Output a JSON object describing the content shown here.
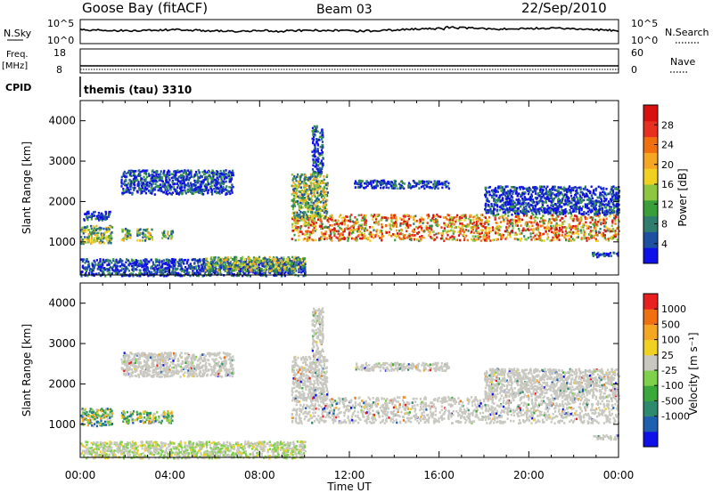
{
  "header": {
    "station": "Goose Bay (fitACF)",
    "beam": "Beam 03",
    "date": "22/Sep/2010",
    "program": "themis (tau) 3310"
  },
  "aux_panels": {
    "nsky_label": "N.Sky",
    "nsky_ticks": [
      "10^5",
      "10^0"
    ],
    "nsky_right_ticks": [
      "10^5",
      "10^0"
    ],
    "nsearch_label": "N.Search",
    "freq_label": "Freq.",
    "freq_unit": "[MHz]",
    "freq_ticks": [
      "18",
      "8"
    ],
    "nave_ticks": [
      "60",
      "0"
    ],
    "nave_label": "Nave",
    "cpid_label": "CPID"
  },
  "chart_data": [
    {
      "type": "heatmap",
      "title": "",
      "xlabel": "",
      "ylabel": "Slant Range [km]",
      "xlim": [
        0,
        24
      ],
      "ylim": [
        180,
        4500
      ],
      "y_ticks": [
        "1000",
        "2000",
        "3000",
        "4000"
      ],
      "colorbar": {
        "label": "Power [dB]",
        "range": [
          0,
          32
        ],
        "ticks": [
          "4",
          "8",
          "12",
          "16",
          "20",
          "24",
          "28"
        ],
        "colors": [
          "#1010e8",
          "#1f4fa0",
          "#2e7d6e",
          "#3a9e3a",
          "#8ec63f",
          "#f0d020",
          "#f5a623",
          "#f07010",
          "#e83020",
          "#d81010"
        ]
      },
      "regions": [
        {
          "t0": 0.0,
          "t1": 1.4,
          "r0": 980,
          "r1": 1420,
          "level": "mid"
        },
        {
          "t0": 0.1,
          "t1": 1.3,
          "r0": 1560,
          "r1": 1780,
          "level": "low"
        },
        {
          "t0": 1.8,
          "t1": 2.2,
          "r0": 1050,
          "r1": 1350,
          "level": "mid"
        },
        {
          "t0": 2.5,
          "t1": 3.2,
          "r0": 1050,
          "r1": 1350,
          "level": "mid"
        },
        {
          "t0": 3.6,
          "t1": 4.1,
          "r0": 1100,
          "r1": 1300,
          "level": "mid"
        },
        {
          "t0": 1.8,
          "t1": 6.8,
          "r0": 2200,
          "r1": 2800,
          "level": "low"
        },
        {
          "t0": 0.0,
          "t1": 10.0,
          "r0": 180,
          "r1": 600,
          "level": "low"
        },
        {
          "t0": 5.5,
          "t1": 10.0,
          "r0": 300,
          "r1": 650,
          "level": "mid"
        },
        {
          "t0": 9.4,
          "t1": 24.0,
          "r0": 1050,
          "r1": 1700,
          "level": "high"
        },
        {
          "t0": 9.4,
          "t1": 11.0,
          "r0": 1600,
          "r1": 2700,
          "level": "mid"
        },
        {
          "t0": 10.3,
          "t1": 10.8,
          "r0": 2700,
          "r1": 3900,
          "level": "low"
        },
        {
          "t0": 12.2,
          "t1": 16.4,
          "r0": 2350,
          "r1": 2550,
          "level": "low"
        },
        {
          "t0": 18.0,
          "t1": 24.0,
          "r0": 1700,
          "r1": 2400,
          "level": "low"
        },
        {
          "t0": 22.8,
          "t1": 24.0,
          "r0": 650,
          "r1": 760,
          "level": "low"
        }
      ]
    },
    {
      "type": "heatmap",
      "title": "",
      "xlabel": "Time UT",
      "ylabel": "Slant Range [km]",
      "xlim": [
        0,
        24
      ],
      "ylim": [
        180,
        4500
      ],
      "x_ticks": [
        "00:00",
        "04:00",
        "08:00",
        "12:00",
        "16:00",
        "20:00",
        "00:00"
      ],
      "y_ticks": [
        "1000",
        "2000",
        "3000",
        "4000"
      ],
      "colorbar": {
        "label": "Velocity [m s⁻¹]",
        "range": [
          -1000,
          1000
        ],
        "ticks": [
          "1000",
          "500",
          "100",
          "25",
          "-25",
          "-100",
          "-500",
          "-1000"
        ],
        "colors": [
          "#1010e8",
          "#1f5fb0",
          "#2e8a6e",
          "#3aa83a",
          "#7fd04a",
          "#c8c8c0",
          "#f0d020",
          "#f5a623",
          "#f07010",
          "#e82020"
        ]
      },
      "regions": [
        {
          "t0": 0.0,
          "t1": 1.4,
          "r0": 980,
          "r1": 1420,
          "level": "mixed"
        },
        {
          "t0": 1.8,
          "t1": 4.1,
          "r0": 1050,
          "r1": 1350,
          "level": "mixed"
        },
        {
          "t0": 1.8,
          "t1": 6.8,
          "r0": 2200,
          "r1": 2800,
          "level": "grey"
        },
        {
          "t0": 0.0,
          "t1": 10.0,
          "r0": 180,
          "r1": 600,
          "level": "greenish"
        },
        {
          "t0": 9.4,
          "t1": 24.0,
          "r0": 1050,
          "r1": 1700,
          "level": "grey"
        },
        {
          "t0": 9.4,
          "t1": 11.0,
          "r0": 1600,
          "r1": 2700,
          "level": "grey"
        },
        {
          "t0": 10.3,
          "t1": 10.8,
          "r0": 2700,
          "r1": 3900,
          "level": "grey"
        },
        {
          "t0": 12.2,
          "t1": 16.4,
          "r0": 2350,
          "r1": 2550,
          "level": "grey"
        },
        {
          "t0": 18.0,
          "t1": 24.0,
          "r0": 1700,
          "r1": 2400,
          "level": "grey"
        },
        {
          "t0": 22.8,
          "t1": 24.0,
          "r0": 650,
          "r1": 760,
          "level": "grey"
        }
      ]
    }
  ]
}
